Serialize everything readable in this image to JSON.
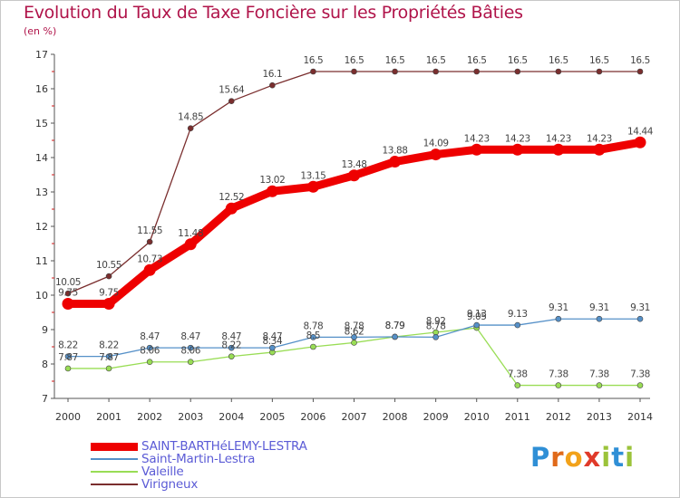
{
  "title": "Evolution du Taux de Taxe Foncière sur les Propriétés Bâties",
  "unit": "(en %)",
  "brand": "Proxiti",
  "chart_data": {
    "type": "line",
    "title": "Evolution du Taux de Taxe Foncière sur les Propriétés Bâties",
    "ylabel": "(en %)",
    "xlabel": "",
    "ylim": [
      7,
      17
    ],
    "yticks": [
      "7",
      "8",
      "9",
      "10",
      "11",
      "12",
      "13",
      "14",
      "15",
      "16",
      "17"
    ],
    "x": [
      "2000",
      "2001",
      "2002",
      "2003",
      "2004",
      "2005",
      "2006",
      "2007",
      "2008",
      "2009",
      "2010",
      "2011",
      "2012",
      "2013",
      "2014"
    ],
    "grid": false,
    "legend_position": "bottom-left",
    "series": [
      {
        "name": "Virigneux",
        "color": "#7a2e2e",
        "values": [
          10.05,
          10.55,
          11.55,
          14.85,
          15.64,
          16.1,
          16.5,
          16.5,
          16.5,
          16.5,
          16.5,
          16.5,
          16.5,
          16.5,
          16.5
        ],
        "labels": [
          "10.05",
          "10.55",
          "11.55",
          "14.85",
          "15.64",
          "16.1",
          "16.5",
          "16.5",
          "16.5",
          "16.5",
          "16.5",
          "16.5",
          "16.5",
          "16.5",
          "16.5"
        ]
      },
      {
        "name": "SAINT-BARTHéLEMY-LESTRA",
        "color": "#ee0000",
        "values": [
          9.75,
          9.75,
          10.73,
          11.48,
          12.52,
          13.02,
          13.15,
          13.48,
          13.88,
          14.09,
          14.23,
          14.23,
          14.23,
          14.23,
          14.44
        ],
        "labels": [
          "9.75",
          "9.75",
          "10.73",
          "11.48",
          "12.52",
          "13.02",
          "13.15",
          "13.48",
          "13.88",
          "14.09",
          "14.23",
          "14.23",
          "14.23",
          "14.23",
          "14.44"
        ]
      },
      {
        "name": "Saint-Martin-Lestra",
        "color": "#5590c8",
        "values": [
          8.22,
          8.22,
          8.47,
          8.47,
          8.47,
          8.47,
          8.78,
          8.78,
          8.79,
          8.78,
          9.13,
          9.13,
          9.31,
          9.31,
          9.31
        ],
        "labels": [
          "8.22",
          "8.22",
          "8.47",
          "8.47",
          "8.47",
          "8.47",
          "8.78",
          "8.78",
          "8.79",
          "8.78",
          "9.13",
          "9.13",
          "9.31",
          "9.31",
          "9.31"
        ]
      },
      {
        "name": "Valeille",
        "color": "#99dd55",
        "values": [
          7.87,
          7.87,
          8.06,
          8.06,
          8.22,
          8.34,
          8.5,
          8.62,
          8.79,
          8.92,
          9.05,
          7.38,
          7.38,
          7.38,
          7.38
        ],
        "labels": [
          "7.87",
          "7.87",
          "8.06",
          "8.06",
          "8.22",
          "8.34",
          "8.5",
          "8.62",
          "8.79",
          "8.92",
          "9.05",
          "7.38",
          "7.38",
          "7.38",
          "7.38"
        ]
      }
    ]
  },
  "legend": {
    "items": [
      {
        "label": "SAINT-BARTHéLEMY-LESTRA",
        "color": "#ee0000",
        "width": 9
      },
      {
        "label": "Saint-Martin-Lestra",
        "color": "#5590c8",
        "width": 2
      },
      {
        "label": "Valeille",
        "color": "#99dd55",
        "width": 2
      },
      {
        "label": "Virigneux",
        "color": "#7a2e2e",
        "width": 2
      }
    ]
  }
}
